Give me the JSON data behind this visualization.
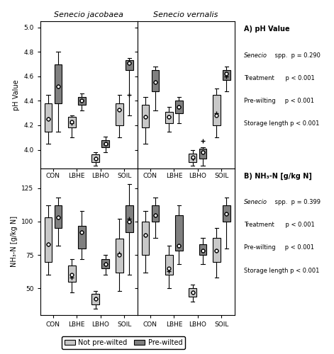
{
  "title_left": "Senecio jacobaea",
  "title_right": "Senecio vernalis",
  "treatments": [
    "CON",
    "LBHE",
    "LBHO",
    "SOIL"
  ],
  "ph_ylabel": "pH Value",
  "nh3_ylabel": "NH₃-N [g/kg N]",
  "ph_ylim": [
    3.85,
    5.05
  ],
  "nh3_ylim": [
    30,
    140
  ],
  "ph_yticks": [
    4.0,
    4.2,
    4.4,
    4.6,
    4.8,
    5.0
  ],
  "nh3_yticks": [
    50,
    75,
    100,
    125
  ],
  "legend_labels": [
    "Not pre-wilted",
    "Pre-wilted"
  ],
  "color_light": "#c8c8c8",
  "color_dark": "#808080",
  "ph_jac_light": {
    "CON": {
      "q1": 4.15,
      "median": 4.25,
      "q3": 4.38,
      "whislo": 4.05,
      "whishi": 4.45,
      "mean": 4.25,
      "fliers": []
    },
    "LBHE": {
      "q1": 4.18,
      "median": 4.23,
      "q3": 4.27,
      "whislo": 4.1,
      "whishi": 4.28,
      "mean": 4.22,
      "fliers": []
    },
    "LBHO": {
      "q1": 3.9,
      "median": 3.93,
      "q3": 3.96,
      "whislo": 3.87,
      "whishi": 3.98,
      "mean": 3.93,
      "fliers": []
    },
    "SOIL": {
      "q1": 4.2,
      "median": 4.33,
      "q3": 4.38,
      "whislo": 4.1,
      "whishi": 4.45,
      "mean": 4.33,
      "fliers": []
    }
  },
  "ph_jac_dark": {
    "CON": {
      "q1": 4.38,
      "median": 4.52,
      "q3": 4.7,
      "whislo": 4.15,
      "whishi": 4.8,
      "mean": 4.52,
      "fliers": []
    },
    "LBHE": {
      "q1": 4.37,
      "median": 4.4,
      "q3": 4.43,
      "whislo": 4.32,
      "whishi": 4.46,
      "mean": 4.4,
      "fliers": []
    },
    "LBHO": {
      "q1": 4.02,
      "median": 4.05,
      "q3": 4.08,
      "whislo": 3.98,
      "whishi": 4.11,
      "mean": 4.05,
      "fliers": []
    },
    "SOIL": {
      "q1": 4.65,
      "median": 4.71,
      "q3": 4.73,
      "whislo": 4.28,
      "whishi": 4.75,
      "mean": 4.71,
      "fliers": [
        4.45
      ]
    }
  },
  "ph_ver_light": {
    "CON": {
      "q1": 4.18,
      "median": 4.27,
      "q3": 4.37,
      "whislo": 4.05,
      "whishi": 4.43,
      "mean": 4.27,
      "fliers": []
    },
    "LBHE": {
      "q1": 4.22,
      "median": 4.27,
      "q3": 4.31,
      "whislo": 4.15,
      "whishi": 4.35,
      "mean": 4.27,
      "fliers": []
    },
    "LBHO": {
      "q1": 3.9,
      "median": 3.94,
      "q3": 3.97,
      "whislo": 3.87,
      "whishi": 4.0,
      "mean": 3.93,
      "fliers": []
    },
    "SOIL": {
      "q1": 4.2,
      "median": 4.28,
      "q3": 4.45,
      "whislo": 4.1,
      "whishi": 4.5,
      "mean": 4.3,
      "fliers": []
    }
  },
  "ph_ver_dark": {
    "CON": {
      "q1": 4.48,
      "median": 4.55,
      "q3": 4.65,
      "whislo": 4.32,
      "whishi": 4.68,
      "mean": 4.55,
      "fliers": []
    },
    "LBHE": {
      "q1": 4.3,
      "median": 4.35,
      "q3": 4.4,
      "whislo": 4.22,
      "whishi": 4.43,
      "mean": 4.35,
      "fliers": []
    },
    "LBHO": {
      "q1": 3.93,
      "median": 3.98,
      "q3": 4.01,
      "whislo": 3.87,
      "whishi": 4.02,
      "mean": 3.98,
      "fliers": [
        4.07
      ]
    },
    "SOIL": {
      "q1": 4.57,
      "median": 4.62,
      "q3": 4.65,
      "whislo": 4.48,
      "whishi": 4.68,
      "mean": 4.6,
      "fliers": []
    }
  },
  "nh3_jac_light": {
    "CON": {
      "q1": 70,
      "median": 83,
      "q3": 103,
      "whislo": 60,
      "whishi": 112,
      "mean": 83,
      "fliers": []
    },
    "LBHE": {
      "q1": 55,
      "median": 60,
      "q3": 67,
      "whislo": 47,
      "whishi": 72,
      "mean": 58,
      "fliers": []
    },
    "LBHO": {
      "q1": 38,
      "median": 42,
      "q3": 46,
      "whislo": 35,
      "whishi": 48,
      "mean": 42,
      "fliers": []
    },
    "SOIL": {
      "q1": 62,
      "median": 75,
      "q3": 87,
      "whislo": 48,
      "whishi": 102,
      "mean": 76,
      "fliers": []
    }
  },
  "nh3_jac_dark": {
    "CON": {
      "q1": 95,
      "median": 103,
      "q3": 112,
      "whislo": 82,
      "whishi": 118,
      "mean": 103,
      "fliers": []
    },
    "LBHE": {
      "q1": 80,
      "median": 92,
      "q3": 97,
      "whislo": 72,
      "whishi": 108,
      "mean": 92,
      "fliers": []
    },
    "LBHO": {
      "q1": 65,
      "median": 68,
      "q3": 72,
      "whislo": 60,
      "whishi": 75,
      "mean": 68,
      "fliers": []
    },
    "SOIL": {
      "q1": 92,
      "median": 100,
      "q3": 112,
      "whislo": 60,
      "whishi": 128,
      "mean": 102,
      "fliers": []
    }
  },
  "nh3_ver_light": {
    "CON": {
      "q1": 75,
      "median": 90,
      "q3": 100,
      "whislo": 62,
      "whishi": 108,
      "mean": 90,
      "fliers": []
    },
    "LBHE": {
      "q1": 60,
      "median": 65,
      "q3": 75,
      "whislo": 50,
      "whishi": 82,
      "mean": 63,
      "fliers": []
    },
    "LBHO": {
      "q1": 44,
      "median": 47,
      "q3": 50,
      "whislo": 40,
      "whishi": 53,
      "mean": 47,
      "fliers": []
    },
    "SOIL": {
      "q1": 70,
      "median": 78,
      "q3": 88,
      "whislo": 58,
      "whishi": 95,
      "mean": 78,
      "fliers": []
    }
  },
  "nh3_ver_dark": {
    "CON": {
      "q1": 100,
      "median": 105,
      "q3": 112,
      "whislo": 88,
      "whishi": 118,
      "mean": 105,
      "fliers": []
    },
    "LBHE": {
      "q1": 78,
      "median": 82,
      "q3": 105,
      "whislo": 68,
      "whishi": 112,
      "mean": 82,
      "fliers": []
    },
    "LBHO": {
      "q1": 75,
      "median": 78,
      "q3": 83,
      "whislo": 68,
      "whishi": 88,
      "mean": 78,
      "fliers": []
    },
    "SOIL": {
      "q1": 100,
      "median": 106,
      "q3": 112,
      "whislo": 80,
      "whishi": 118,
      "mean": 106,
      "fliers": []
    }
  }
}
